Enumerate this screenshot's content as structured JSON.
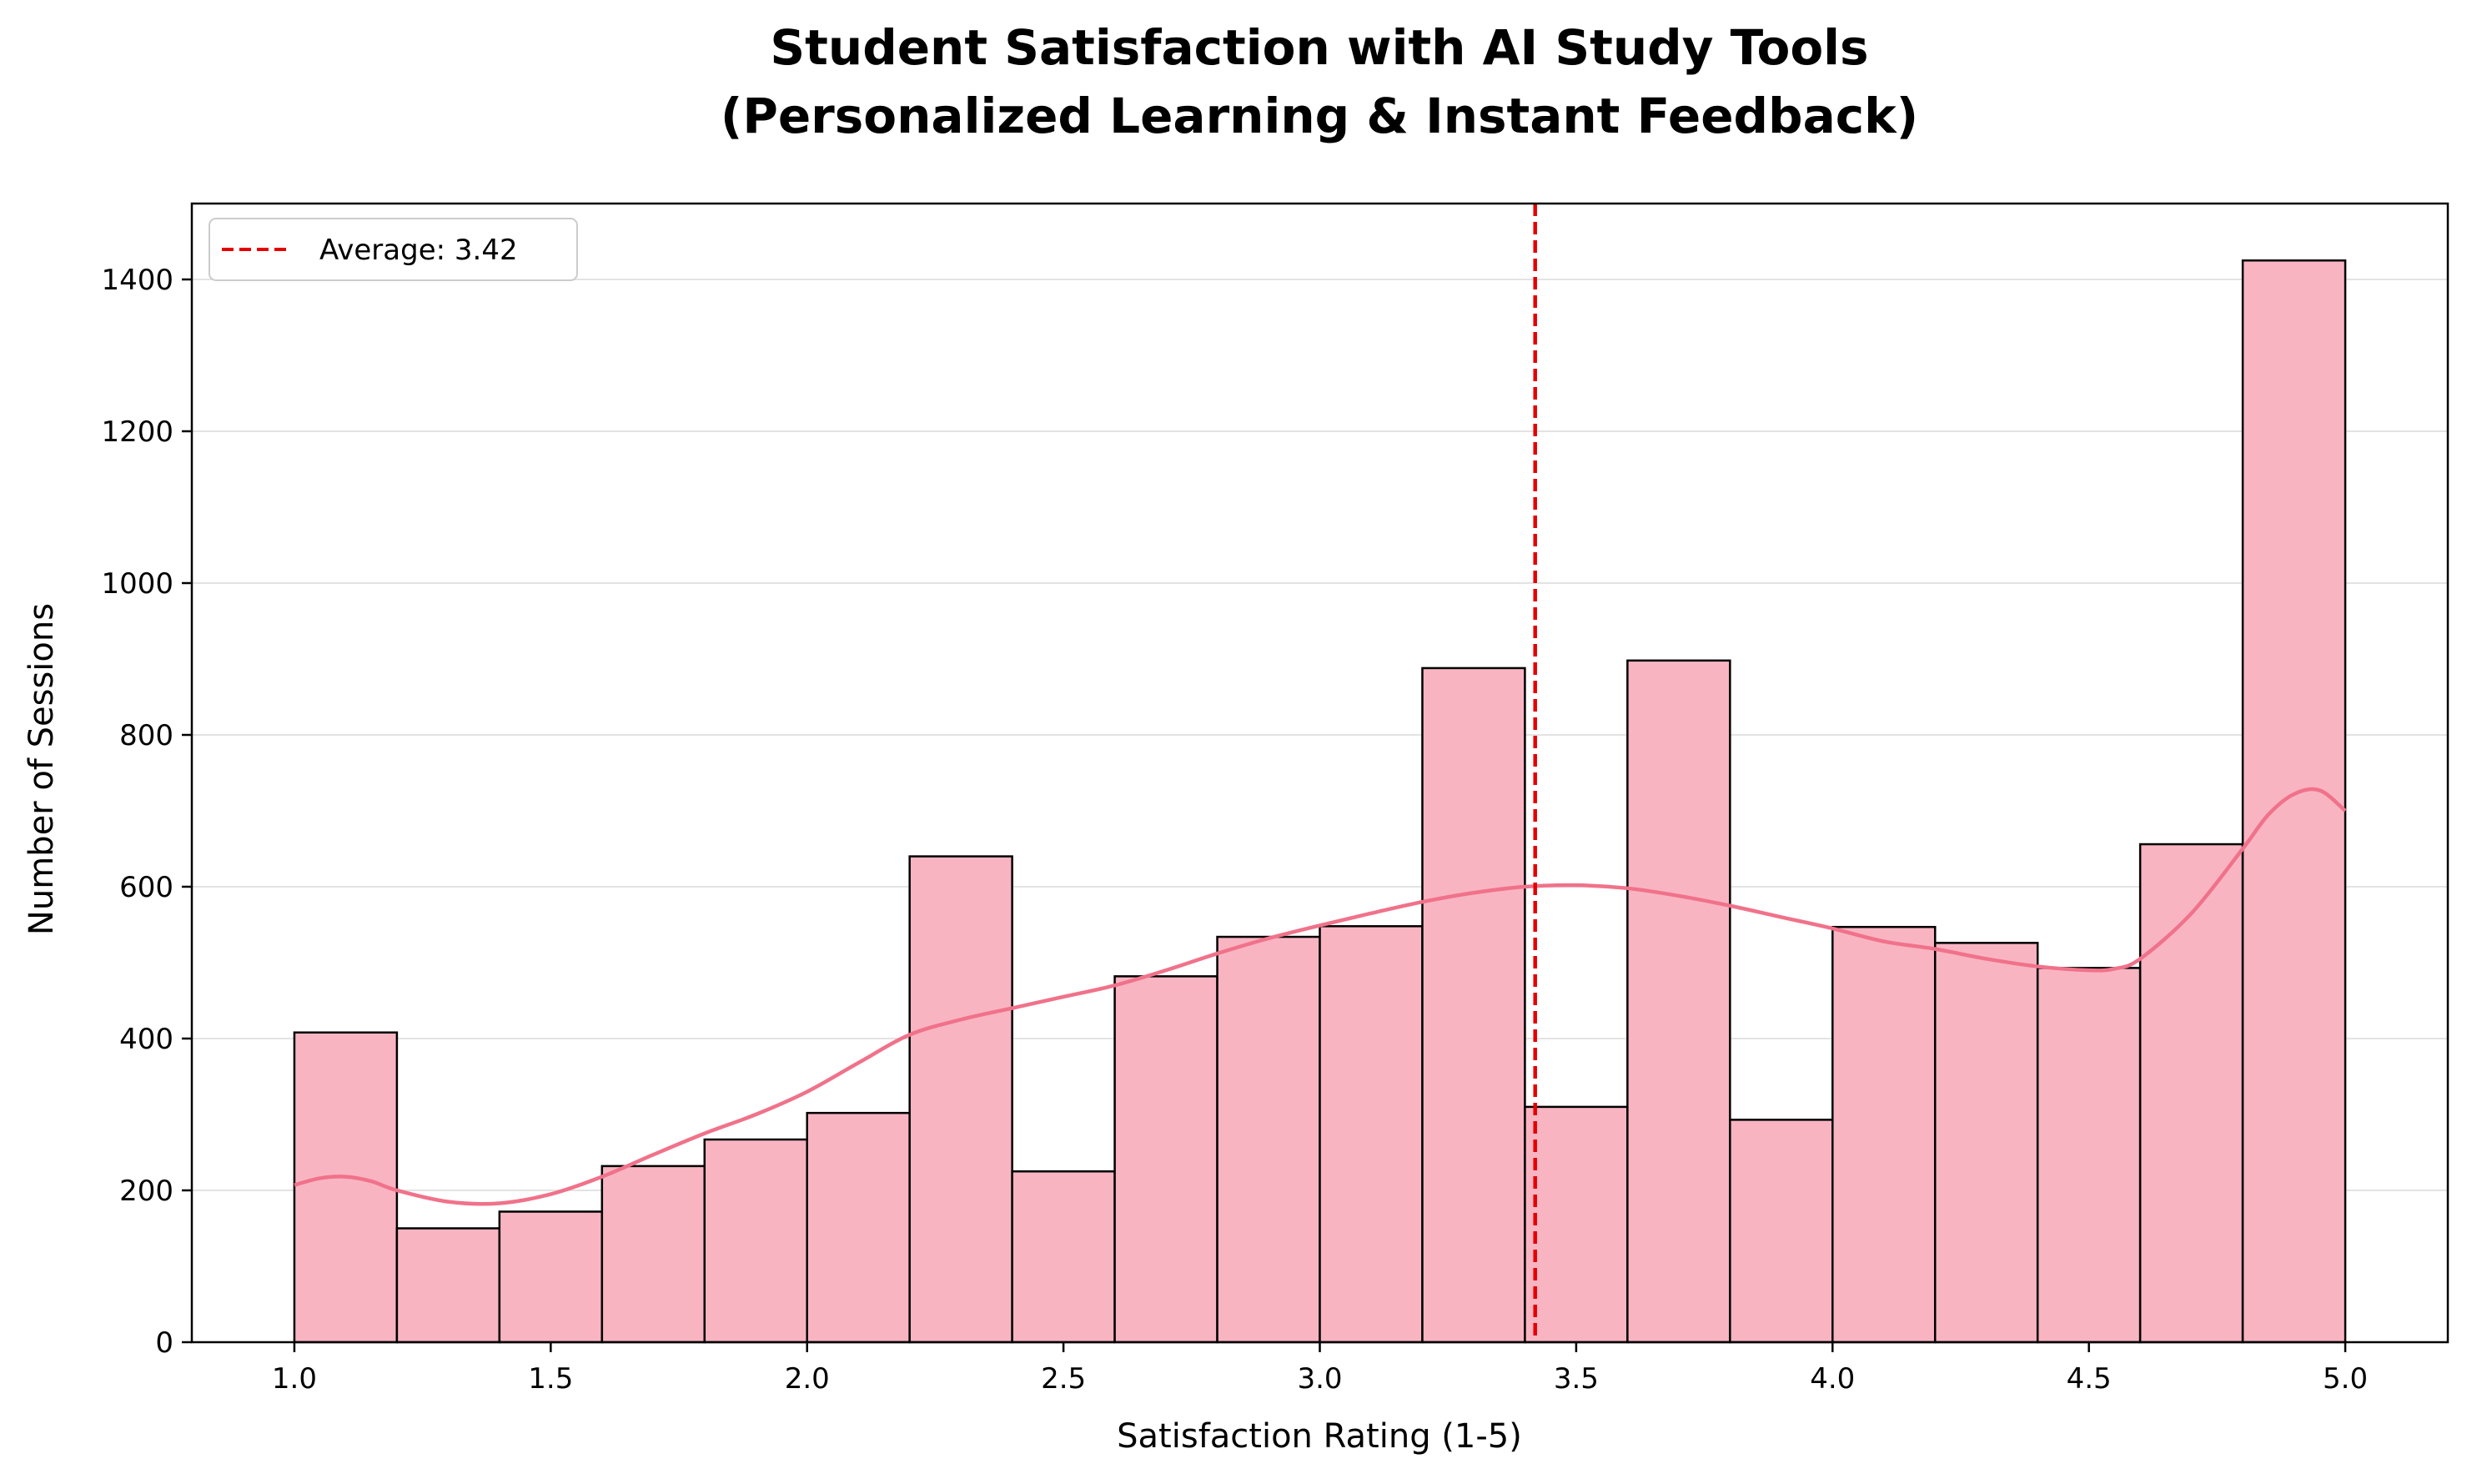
{
  "chart_data": {
    "type": "bar",
    "subtype": "histogram",
    "title": "Student Satisfaction with AI Study Tools\n(Personalized Learning & Instant Feedback)",
    "title_lines": [
      "Student Satisfaction with AI Study Tools",
      "(Personalized Learning & Instant Feedback)"
    ],
    "xlabel": "Satisfaction Rating (1-5)",
    "ylabel": "Number of Sessions",
    "xlim": [
      0.8,
      5.2
    ],
    "ylim": [
      0,
      1500
    ],
    "xticks": [
      1.0,
      1.5,
      2.0,
      2.5,
      3.0,
      3.5,
      4.0,
      4.5,
      5.0
    ],
    "xtick_labels": [
      "1.0",
      "1.5",
      "2.0",
      "2.5",
      "3.0",
      "3.5",
      "4.0",
      "4.5",
      "5.0"
    ],
    "yticks": [
      0,
      200,
      400,
      600,
      800,
      1000,
      1200,
      1400
    ],
    "ytick_labels": [
      "0",
      "200",
      "400",
      "600",
      "800",
      "1000",
      "1200",
      "1400"
    ],
    "grid": {
      "x": false,
      "y": true
    },
    "bin_edges": [
      1.0,
      1.2,
      1.4,
      1.6,
      1.8,
      2.0,
      2.2,
      2.4,
      2.6,
      2.8,
      3.0,
      3.2,
      3.4,
      3.6,
      3.8,
      4.0,
      4.2,
      4.4,
      4.6,
      4.8,
      5.0
    ],
    "values": [
      408,
      150,
      172,
      232,
      267,
      302,
      640,
      225,
      482,
      534,
      548,
      888,
      310,
      898,
      293,
      547,
      526,
      493,
      656,
      1425
    ],
    "kde": {
      "x": [
        1.0,
        1.05,
        1.1,
        1.15,
        1.2,
        1.3,
        1.4,
        1.5,
        1.6,
        1.7,
        1.8,
        1.9,
        2.0,
        2.1,
        2.2,
        2.3,
        2.4,
        2.5,
        2.6,
        2.7,
        2.8,
        2.9,
        3.0,
        3.1,
        3.2,
        3.3,
        3.4,
        3.5,
        3.6,
        3.7,
        3.8,
        3.9,
        4.0,
        4.1,
        4.2,
        4.3,
        4.4,
        4.5,
        4.55,
        4.6,
        4.7,
        4.8,
        4.85,
        4.9,
        4.95,
        5.0
      ],
      "y": [
        207,
        216,
        218,
        212,
        200,
        185,
        183,
        195,
        218,
        247,
        275,
        300,
        330,
        368,
        405,
        425,
        440,
        455,
        470,
        490,
        512,
        532,
        549,
        565,
        580,
        592,
        600,
        602,
        598,
        588,
        575,
        560,
        545,
        528,
        518,
        505,
        495,
        490,
        492,
        505,
        565,
        650,
        695,
        722,
        727,
        700
      ]
    },
    "average_line": {
      "x": 3.42,
      "label": "Average: 3.42",
      "style": "dashed",
      "color": "#e50000"
    },
    "legend": {
      "placement": "top-left",
      "entries": [
        "Average: 3.42"
      ]
    },
    "colors": {
      "bar_fill": "#f9b4c2",
      "bar_edge": "#000000",
      "kde_line": "#f0728a",
      "average_line": "#e50000",
      "grid": "#e3e3e3"
    }
  }
}
